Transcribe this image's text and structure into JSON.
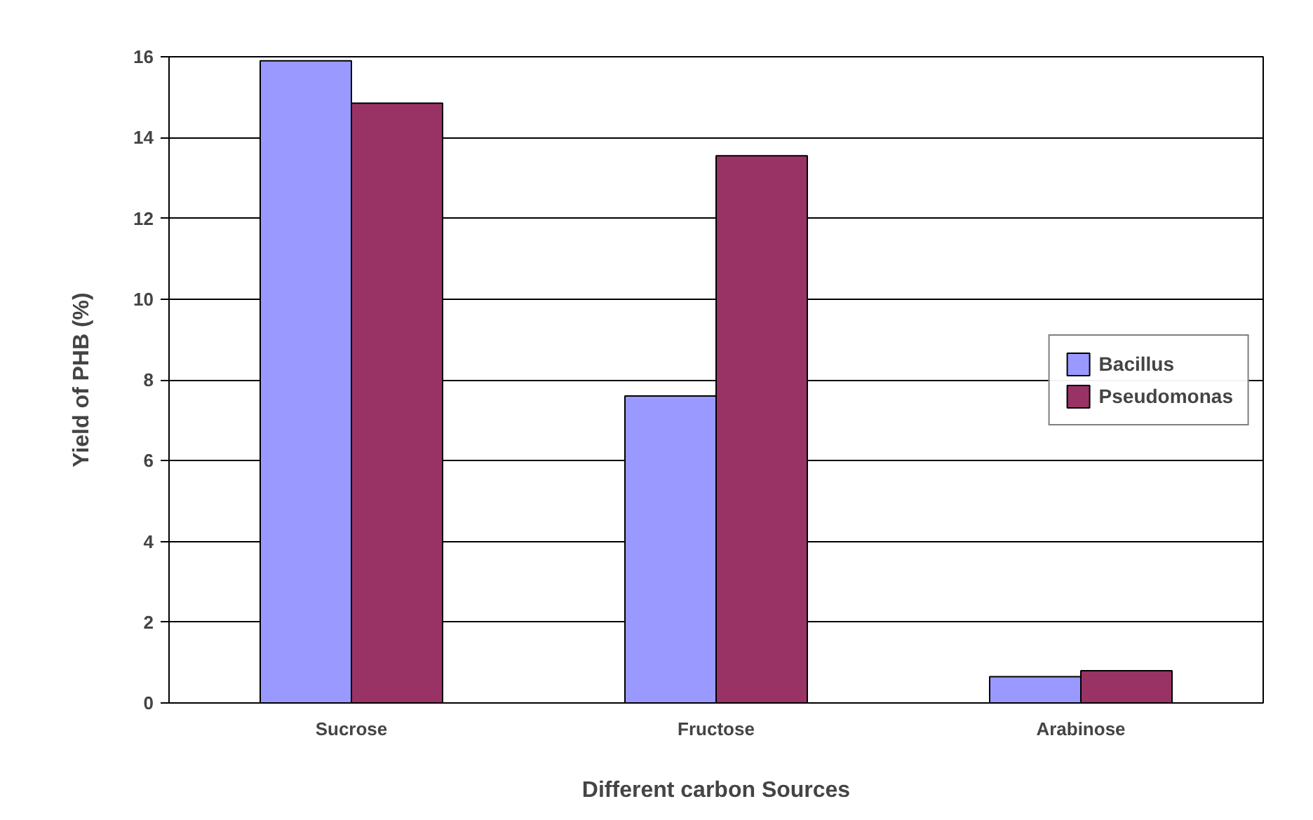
{
  "chart_data": {
    "type": "bar",
    "xlabel": "Different carbon Sources",
    "ylabel": "Yield of PHB (%)",
    "categories": [
      "Sucrose",
      "Fructose",
      "Arabinose"
    ],
    "series": [
      {
        "name": "Bacillus",
        "color": "#9999ff",
        "values": [
          15.9,
          7.6,
          0.65
        ]
      },
      {
        "name": "Pseudomonas",
        "color": "#993366",
        "values": [
          14.85,
          13.55,
          0.8
        ]
      }
    ],
    "ylim": [
      0,
      16
    ],
    "yticks": [
      0,
      2,
      4,
      6,
      8,
      10,
      12,
      14,
      16
    ],
    "grid": "y",
    "legend": "right"
  }
}
